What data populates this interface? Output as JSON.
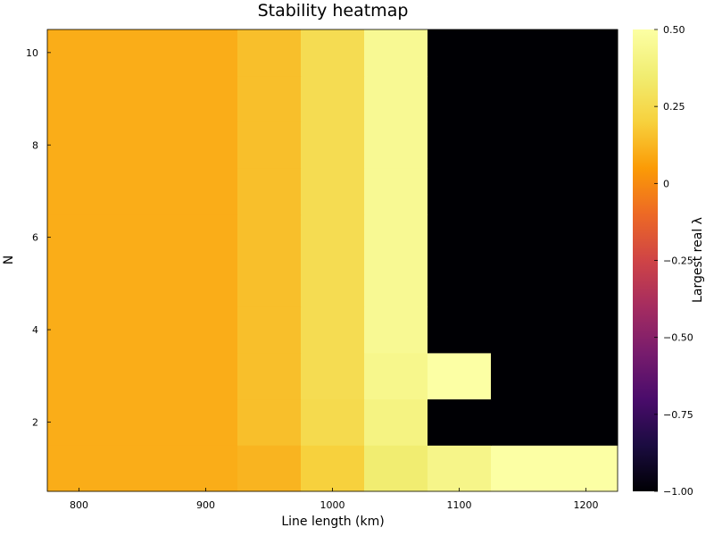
{
  "chart_data": {
    "type": "heatmap",
    "title": "Stability heatmap",
    "xlabel": "Line length (km)",
    "ylabel": "N",
    "colorbar_label": "Largest real λ",
    "colormap": "inferno",
    "x_ticks": [
      {
        "value": 800,
        "label": "800"
      },
      {
        "value": 900,
        "label": "900"
      },
      {
        "value": 1000,
        "label": "1000"
      },
      {
        "value": 1100,
        "label": "1100"
      },
      {
        "value": 1200,
        "label": "1200"
      }
    ],
    "y_ticks": [
      {
        "value": 2,
        "label": "2"
      },
      {
        "value": 4,
        "label": "4"
      },
      {
        "value": 6,
        "label": "6"
      },
      {
        "value": 8,
        "label": "8"
      },
      {
        "value": 10,
        "label": "10"
      }
    ],
    "colorbar_ticks": [
      {
        "value": 0.5,
        "label": "0.50"
      },
      {
        "value": 0.25,
        "label": "0.25"
      },
      {
        "value": 0.0,
        "label": "0"
      },
      {
        "value": -0.25,
        "label": "−0.25"
      },
      {
        "value": -0.5,
        "label": "−0.50"
      },
      {
        "value": -0.75,
        "label": "−0.75"
      },
      {
        "value": -1.0,
        "label": "−1.00"
      }
    ],
    "x_edges": [
      775,
      925,
      975,
      1025,
      1075,
      1125,
      1225
    ],
    "y_edges": [
      0.5,
      1.5,
      2.5,
      3.5,
      4.5,
      5.5,
      6.5,
      7.5,
      8.5,
      9.5,
      10.5
    ],
    "zlim": [
      -1.0,
      0.5
    ],
    "values": [
      [
        0.1,
        0.12,
        0.2,
        0.35,
        0.42,
        0.5
      ],
      [
        0.1,
        0.15,
        0.25,
        0.4,
        -1.0,
        -1.0
      ],
      [
        0.1,
        0.15,
        0.26,
        0.43,
        0.5,
        -1.0
      ],
      [
        0.1,
        0.15,
        0.26,
        0.45,
        -1.0,
        -1.0
      ],
      [
        0.1,
        0.15,
        0.26,
        0.45,
        -1.0,
        -1.0
      ],
      [
        0.1,
        0.15,
        0.26,
        0.45,
        -1.0,
        -1.0
      ],
      [
        0.1,
        0.15,
        0.26,
        0.45,
        -1.0,
        -1.0
      ],
      [
        0.1,
        0.15,
        0.26,
        0.45,
        -1.0,
        -1.0
      ],
      [
        0.1,
        0.15,
        0.26,
        0.45,
        -1.0,
        -1.0
      ],
      [
        0.1,
        0.15,
        0.26,
        0.45,
        -1.0,
        -1.0
      ]
    ]
  }
}
